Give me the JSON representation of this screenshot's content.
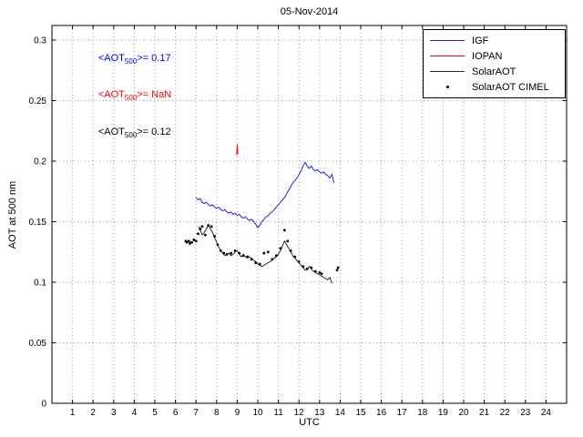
{
  "chart_data": {
    "type": "line",
    "title": "05-Nov-2014",
    "xlabel": "UTC",
    "ylabel": "AOT at 500 nm",
    "xlim": [
      0,
      25
    ],
    "ylim": [
      0,
      0.312
    ],
    "x_ticks": [
      "1",
      "2",
      "3",
      "4",
      "5",
      "6",
      "7",
      "8",
      "9",
      "10",
      "11",
      "12",
      "13",
      "14",
      "15",
      "16",
      "17",
      "18",
      "19",
      "20",
      "21",
      "22",
      "23",
      "24"
    ],
    "y_ticks": [
      "0",
      "0.05",
      "0.1",
      "0.15",
      "0.2",
      "0.25",
      "0.3"
    ],
    "grid": true,
    "legend_position": "top-right",
    "series": [
      {
        "name": "IGF",
        "type": "line",
        "color": "#2222dd",
        "points": [
          [
            7.0,
            0.17
          ],
          [
            7.1,
            0.168
          ],
          [
            7.2,
            0.169
          ],
          [
            7.3,
            0.166
          ],
          [
            7.4,
            0.165
          ],
          [
            7.5,
            0.166
          ],
          [
            7.6,
            0.164
          ],
          [
            7.7,
            0.163
          ],
          [
            7.8,
            0.164
          ],
          [
            7.9,
            0.162
          ],
          [
            8.0,
            0.161
          ],
          [
            8.1,
            0.162
          ],
          [
            8.2,
            0.16
          ],
          [
            8.3,
            0.159
          ],
          [
            8.4,
            0.16
          ],
          [
            8.5,
            0.158
          ],
          [
            8.6,
            0.157
          ],
          [
            8.7,
            0.158
          ],
          [
            8.8,
            0.156
          ],
          [
            8.9,
            0.157
          ],
          [
            9.0,
            0.155
          ],
          [
            9.1,
            0.156
          ],
          [
            9.2,
            0.154
          ],
          [
            9.3,
            0.153
          ],
          [
            9.4,
            0.154
          ],
          [
            9.5,
            0.152
          ],
          [
            9.6,
            0.151
          ],
          [
            9.7,
            0.152
          ],
          [
            9.8,
            0.15
          ],
          [
            9.9,
            0.148
          ],
          [
            10.0,
            0.145
          ],
          [
            10.1,
            0.147
          ],
          [
            10.2,
            0.15
          ],
          [
            10.3,
            0.152
          ],
          [
            10.4,
            0.154
          ],
          [
            10.5,
            0.155
          ],
          [
            10.6,
            0.157
          ],
          [
            10.7,
            0.158
          ],
          [
            10.8,
            0.16
          ],
          [
            10.9,
            0.162
          ],
          [
            11.0,
            0.164
          ],
          [
            11.1,
            0.166
          ],
          [
            11.2,
            0.168
          ],
          [
            11.3,
            0.17
          ],
          [
            11.4,
            0.173
          ],
          [
            11.5,
            0.176
          ],
          [
            11.6,
            0.179
          ],
          [
            11.7,
            0.182
          ],
          [
            11.8,
            0.184
          ],
          [
            11.9,
            0.186
          ],
          [
            12.0,
            0.189
          ],
          [
            12.1,
            0.192
          ],
          [
            12.2,
            0.196
          ],
          [
            12.3,
            0.199
          ],
          [
            12.4,
            0.196
          ],
          [
            12.5,
            0.194
          ],
          [
            12.6,
            0.196
          ],
          [
            12.7,
            0.193
          ],
          [
            12.8,
            0.192
          ],
          [
            12.9,
            0.193
          ],
          [
            13.0,
            0.191
          ],
          [
            13.1,
            0.19
          ],
          [
            13.2,
            0.191
          ],
          [
            13.3,
            0.189
          ],
          [
            13.4,
            0.188
          ],
          [
            13.5,
            0.186
          ],
          [
            13.6,
            0.189
          ],
          [
            13.7,
            0.182
          ]
        ]
      },
      {
        "name": "IOPAN",
        "type": "line",
        "color": "#ff0000",
        "points": [
          [
            8.98,
            0.205
          ],
          [
            9.0,
            0.214
          ],
          [
            9.03,
            0.206
          ]
        ]
      },
      {
        "name": "SolarAOT",
        "type": "line",
        "color": "#2a2a2a",
        "points": [
          [
            7.15,
            0.146
          ],
          [
            7.2,
            0.143
          ],
          [
            7.3,
            0.139
          ],
          [
            7.4,
            0.141
          ],
          [
            7.5,
            0.144
          ],
          [
            7.6,
            0.147
          ],
          [
            7.7,
            0.144
          ],
          [
            7.8,
            0.141
          ],
          [
            7.9,
            0.137
          ],
          [
            8.0,
            0.133
          ],
          [
            8.1,
            0.129
          ],
          [
            8.2,
            0.126
          ],
          [
            8.3,
            0.124
          ],
          [
            8.4,
            0.122
          ],
          [
            8.5,
            0.123
          ],
          [
            8.6,
            0.124
          ],
          [
            8.7,
            0.122
          ],
          [
            8.8,
            0.123
          ],
          [
            8.9,
            0.125
          ],
          [
            9.0,
            0.126
          ],
          [
            9.1,
            0.123
          ],
          [
            9.2,
            0.121
          ],
          [
            9.3,
            0.123
          ],
          [
            9.4,
            0.121
          ],
          [
            9.5,
            0.12
          ],
          [
            9.6,
            0.121
          ],
          [
            9.7,
            0.119
          ],
          [
            9.8,
            0.118
          ],
          [
            9.9,
            0.117
          ],
          [
            10.0,
            0.115
          ],
          [
            10.1,
            0.114
          ],
          [
            10.2,
            0.113
          ],
          [
            10.3,
            0.114
          ],
          [
            10.4,
            0.115
          ],
          [
            10.5,
            0.116
          ],
          [
            10.6,
            0.117
          ],
          [
            10.7,
            0.118
          ],
          [
            10.8,
            0.12
          ],
          [
            10.9,
            0.121
          ],
          [
            11.0,
            0.123
          ],
          [
            11.1,
            0.126
          ],
          [
            11.2,
            0.13
          ],
          [
            11.3,
            0.134
          ],
          [
            11.4,
            0.131
          ],
          [
            11.5,
            0.128
          ],
          [
            11.6,
            0.125
          ],
          [
            11.7,
            0.122
          ],
          [
            11.8,
            0.12
          ],
          [
            11.9,
            0.118
          ],
          [
            12.0,
            0.116
          ],
          [
            12.1,
            0.114
          ],
          [
            12.2,
            0.112
          ],
          [
            12.3,
            0.11
          ],
          [
            12.4,
            0.111
          ],
          [
            12.5,
            0.113
          ],
          [
            12.6,
            0.111
          ],
          [
            12.7,
            0.109
          ],
          [
            12.8,
            0.108
          ],
          [
            12.9,
            0.107
          ],
          [
            13.0,
            0.106
          ],
          [
            13.1,
            0.105
          ],
          [
            13.2,
            0.104
          ],
          [
            13.3,
            0.103
          ],
          [
            13.4,
            0.102
          ],
          [
            13.5,
            0.104
          ],
          [
            13.6,
            0.099
          ]
        ]
      },
      {
        "name": "SolarAOT CIMEL",
        "type": "scatter",
        "color": "#000000",
        "points": [
          [
            6.5,
            0.134
          ],
          [
            6.55,
            0.133
          ],
          [
            6.65,
            0.134
          ],
          [
            6.7,
            0.132
          ],
          [
            6.8,
            0.133
          ],
          [
            6.9,
            0.135
          ],
          [
            7.0,
            0.134
          ],
          [
            7.1,
            0.14
          ],
          [
            7.2,
            0.144
          ],
          [
            7.3,
            0.146
          ],
          [
            7.45,
            0.139
          ],
          [
            7.6,
            0.147
          ],
          [
            7.75,
            0.146
          ],
          [
            7.9,
            0.138
          ],
          [
            8.05,
            0.131
          ],
          [
            8.2,
            0.126
          ],
          [
            8.35,
            0.124
          ],
          [
            8.5,
            0.123
          ],
          [
            8.7,
            0.124
          ],
          [
            8.9,
            0.126
          ],
          [
            9.1,
            0.124
          ],
          [
            9.3,
            0.122
          ],
          [
            9.5,
            0.121
          ],
          [
            9.7,
            0.119
          ],
          [
            9.9,
            0.116
          ],
          [
            10.1,
            0.115
          ],
          [
            10.3,
            0.124
          ],
          [
            10.5,
            0.125
          ],
          [
            10.7,
            0.119
          ],
          [
            10.9,
            0.122
          ],
          [
            11.1,
            0.128
          ],
          [
            11.3,
            0.143
          ],
          [
            11.45,
            0.134
          ],
          [
            11.6,
            0.126
          ],
          [
            11.8,
            0.121
          ],
          [
            12.0,
            0.117
          ],
          [
            12.2,
            0.113
          ],
          [
            12.4,
            0.111
          ],
          [
            12.6,
            0.112
          ],
          [
            12.8,
            0.109
          ],
          [
            13.0,
            0.108
          ],
          [
            13.1,
            0.107
          ],
          [
            13.85,
            0.11
          ],
          [
            13.9,
            0.112
          ]
        ]
      }
    ],
    "annotations": [
      {
        "pre": "<AOT",
        "sub": "500",
        "post": ">= 0.17",
        "color": "#0000ff",
        "x": 2.25,
        "y": 0.284
      },
      {
        "pre": "<AOT",
        "sub": "500",
        "post": ">=  NaN",
        "color": "#ff0000",
        "x": 2.25,
        "y": 0.254
      },
      {
        "pre": "<AOT",
        "sub": "500",
        "post": ">= 0.12",
        "color": "#000000",
        "x": 2.25,
        "y": 0.223
      }
    ]
  }
}
